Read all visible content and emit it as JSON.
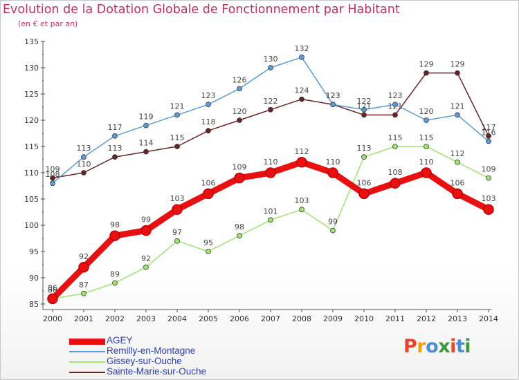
{
  "header": {
    "title": "Evolution de la Dotation Globale de Fonctionnement par Habitant",
    "subtitle": "(en € et par an)"
  },
  "legend": {
    "items": [
      {
        "label": "AGEY",
        "color": "#e81010"
      },
      {
        "label": "Remilly-en-Montagne",
        "color": "#5b9bd5"
      },
      {
        "label": "Gissey-sur-Ouche",
        "color": "#9ee36b"
      },
      {
        "label": "Sainte-Marie-sur-Ouche",
        "color": "#6b2227"
      }
    ]
  },
  "logo": {
    "text": "Proxiti",
    "colors": [
      "#e8452a",
      "#f2a114",
      "#4a8fd6",
      "#3c9a3c",
      "#e8452a",
      "#4a8fd6",
      "#3c9a3c"
    ]
  },
  "chart_data": {
    "type": "line",
    "title": "Evolution de la Dotation Globale de Fonctionnement par Habitant",
    "subtitle": "(en € et par an)",
    "xlabel": "",
    "ylabel": "",
    "x": [
      2000,
      2001,
      2002,
      2003,
      2004,
      2005,
      2006,
      2007,
      2008,
      2009,
      2010,
      2011,
      2012,
      2013,
      2014
    ],
    "ylim": [
      85,
      135
    ],
    "yticks": [
      85,
      90,
      95,
      100,
      105,
      110,
      115,
      120,
      125,
      130,
      135
    ],
    "grid": false,
    "legend_position": "bottom-left",
    "series": [
      {
        "name": "AGEY",
        "color": "#e81010",
        "values": [
          86,
          92,
          98,
          99,
          103,
          106,
          109,
          110,
          112,
          110,
          106,
          108,
          110,
          106,
          103
        ]
      },
      {
        "name": "Remilly-en-Montagne",
        "color": "#5b9bd5",
        "values": [
          108,
          113,
          117,
          119,
          121,
          123,
          126,
          130,
          132,
          123,
          122,
          123,
          120,
          121,
          116
        ]
      },
      {
        "name": "Gissey-sur-Ouche",
        "color": "#9ee36b",
        "values": [
          86,
          87,
          89,
          92,
          97,
          95,
          98,
          101,
          103,
          99,
          113,
          115,
          115,
          112,
          109
        ]
      },
      {
        "name": "Sainte-Marie-sur-Ouche",
        "color": "#6b2227",
        "values": [
          109,
          110,
          113,
          114,
          115,
          118,
          120,
          122,
          124,
          123,
          121,
          121,
          129,
          129,
          117
        ]
      }
    ]
  }
}
